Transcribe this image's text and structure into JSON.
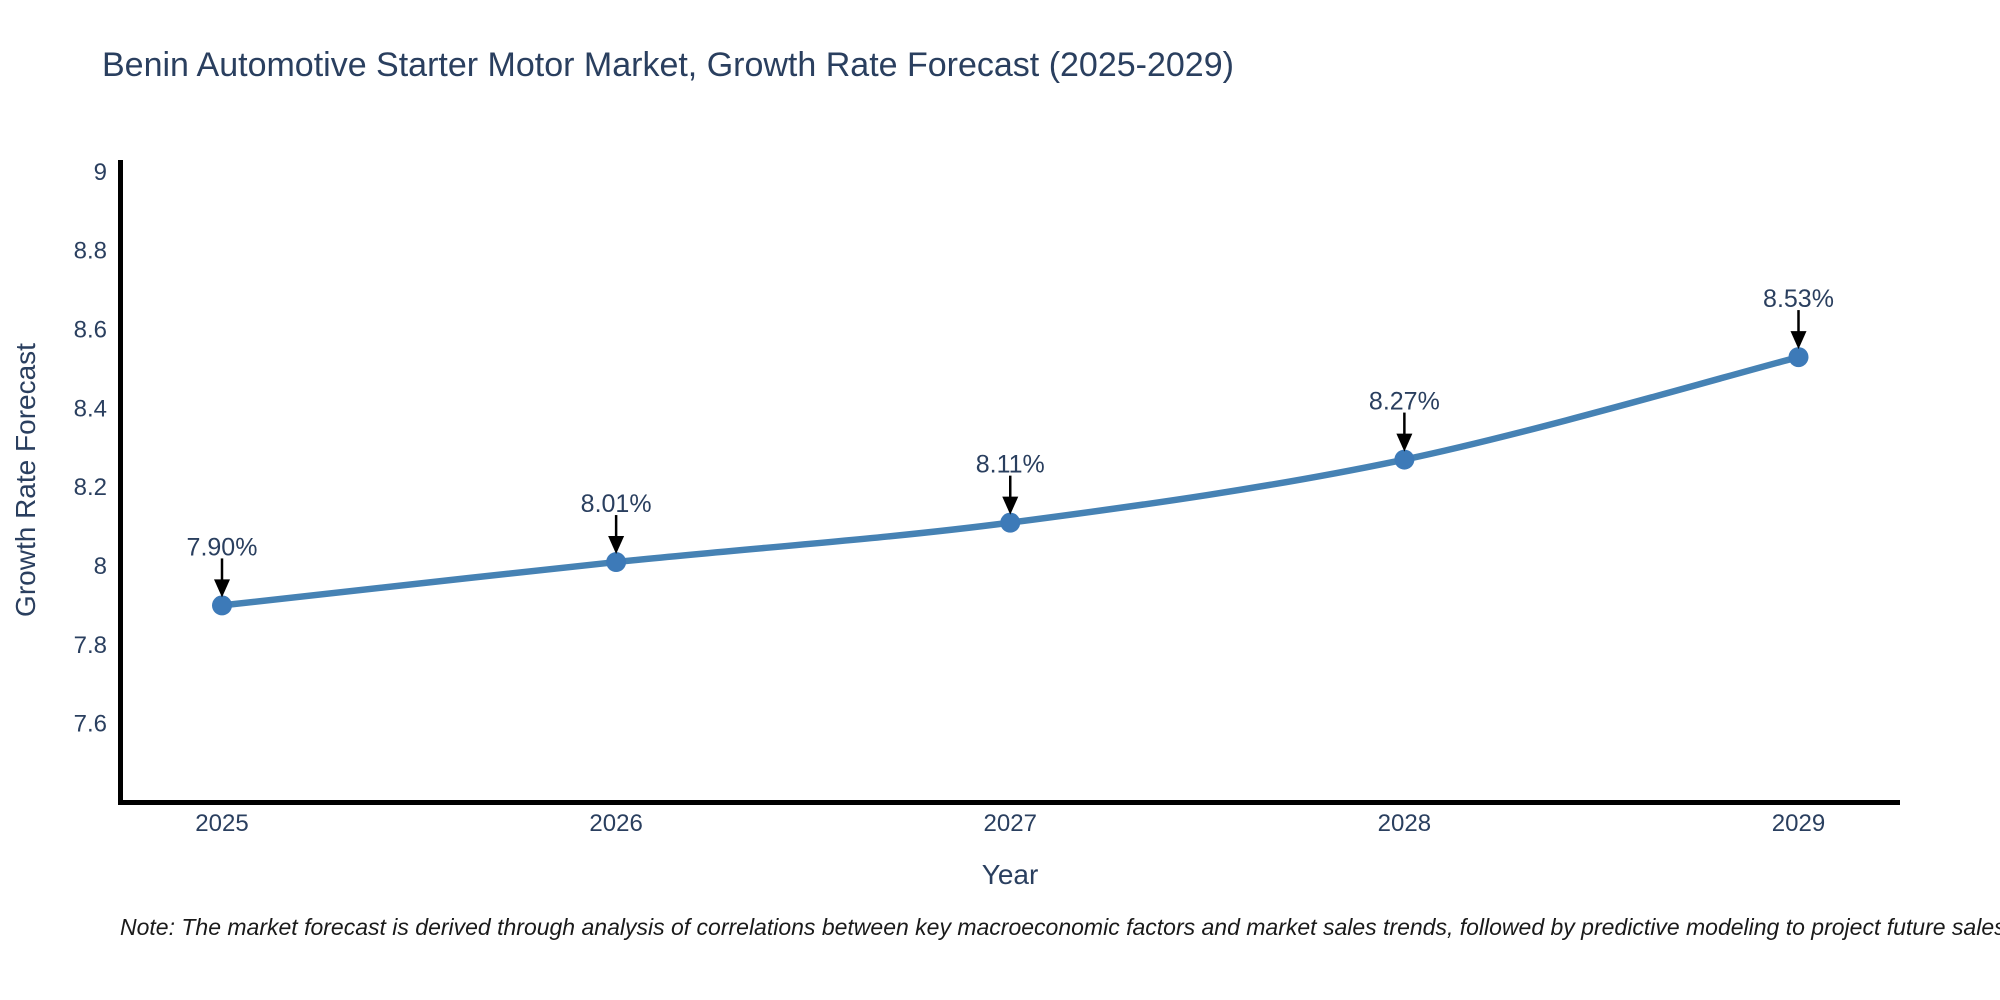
{
  "header": {
    "title": "Benin Automotive Starter Motor Market, Growth Rate Forecast (2025-2029)"
  },
  "chart_data": {
    "type": "line",
    "title": "Benin Automotive Starter Motor Market, Growth Rate Forecast (2025-2029)",
    "xlabel": "Year",
    "ylabel": "Growth Rate Forecast",
    "categories": [
      "2025",
      "2026",
      "2027",
      "2028",
      "2029"
    ],
    "series": [
      {
        "name": "Growth Rate Forecast",
        "values": [
          7.9,
          8.01,
          8.11,
          8.27,
          8.53
        ],
        "point_labels": [
          "7.90%",
          "8.01%",
          "8.11%",
          "8.27%",
          "8.53%"
        ]
      }
    ],
    "ytick_labels": [
      "9",
      "8.8",
      "8.6",
      "8.4",
      "8.2",
      "8",
      "7.8",
      "7.6"
    ],
    "ytick_values": [
      9,
      8.8,
      8.6,
      8.4,
      8.2,
      8,
      7.8,
      7.6
    ],
    "ylim": [
      7.4,
      9.03
    ],
    "grid": false,
    "legend_position": "none",
    "line_shape": "spline",
    "annotation_arrows": true,
    "colors": {
      "line": "#4682b4",
      "marker": "#3d7ab8",
      "axis": "#000000",
      "text": "#2a3f5f",
      "arrow": "#000000",
      "background": "#ffffff"
    }
  },
  "note": {
    "text": "Note: The market forecast is derived through analysis of correlations between key macroeconomic factors and market sales trends, followed by predictive modeling to project future sales"
  }
}
